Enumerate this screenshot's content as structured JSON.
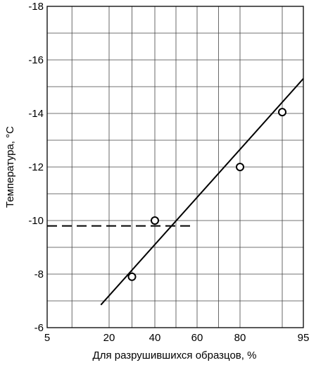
{
  "chart_data": {
    "type": "scatter",
    "xlabel": "Для разрушившихся образцов, %",
    "ylabel": "Температура, °C",
    "x_ticks": [
      {
        "value": 5,
        "label": "5"
      },
      {
        "value": 20,
        "label": "20"
      },
      {
        "value": 40,
        "label": "40"
      },
      {
        "value": 60,
        "label": "60"
      },
      {
        "value": 80,
        "label": "80"
      },
      {
        "value": 95,
        "label": "95"
      }
    ],
    "y_ticks": [
      {
        "value": -6,
        "label": "-6"
      },
      {
        "value": -8,
        "label": "-8"
      },
      {
        "value": -10,
        "label": "-10"
      },
      {
        "value": -12,
        "label": "-12"
      },
      {
        "value": -14,
        "label": "-14"
      },
      {
        "value": -16,
        "label": "-16"
      },
      {
        "value": -18,
        "label": "-18"
      }
    ],
    "ylim": [
      -6,
      -18
    ],
    "grid": true,
    "points": [
      {
        "x": 30,
        "y": -7.9
      },
      {
        "x": 40,
        "y": -10.0
      },
      {
        "x": 80,
        "y": -12.0
      },
      {
        "x": 90,
        "y": -14.05
      }
    ],
    "fit_line": [
      {
        "x": 18,
        "y": -6.85
      },
      {
        "x": 95,
        "y": -15.3
      }
    ],
    "reference_line": {
      "y": -9.8,
      "x_from": 5,
      "x_to": 57,
      "style": "dashed"
    }
  }
}
